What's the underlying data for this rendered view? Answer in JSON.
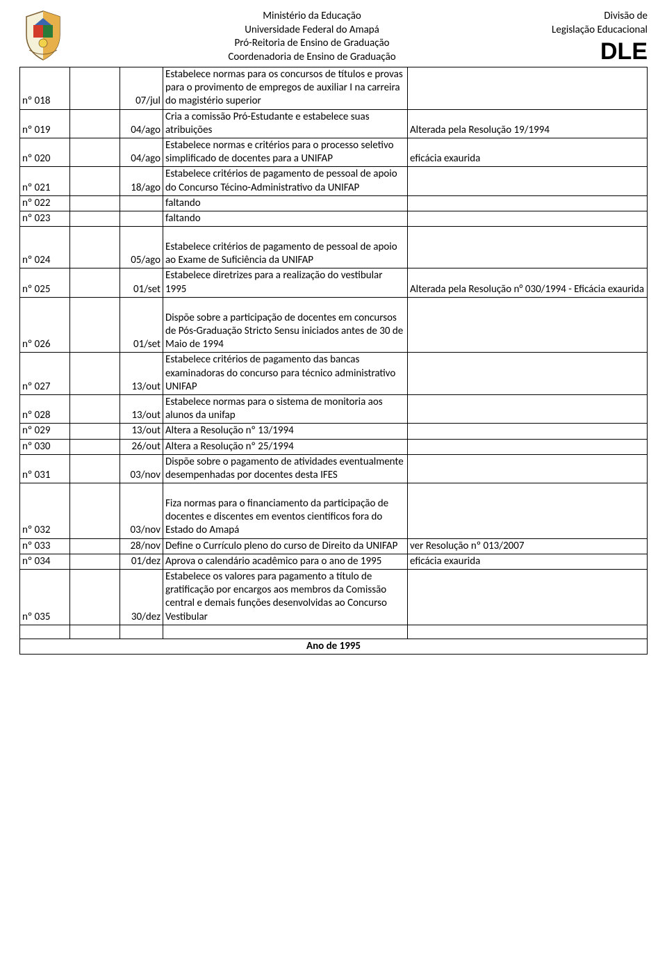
{
  "header": {
    "center": {
      "l1": "Ministério da Educação",
      "l2": "Universidade Federal do Amapá",
      "l3": "Pró-Reitoria de Ensino de Graduação",
      "l4": "Coordenadoria de Ensino de Graduação"
    },
    "right": {
      "l1": "Divisão de",
      "l2": "Legislação Educacional",
      "acronym": "DLE"
    }
  },
  "rows": [
    {
      "num": "nº 018",
      "date": "07/jul",
      "desc": "Estabelece normas para os concursos de títulos e provas para o provimento de empregos de auxiliar I na carreira do magistério superior",
      "note": ""
    },
    {
      "num": "nº 019",
      "date": "04/ago",
      "desc": "Cria a comissão Pró-Estudante e estabelece suas atribuições",
      "note": "Alterada pela Resolução 19/1994"
    },
    {
      "num": "nº 020",
      "date": "04/ago",
      "desc": "Estabelece normas e critérios para o processo seletivo simplificado de docentes para a UNIFAP",
      "note": "eficácia exaurida"
    },
    {
      "num": "nº 021",
      "date": "18/ago",
      "desc": "Estabelece critérios de pagamento de pessoal de apoio do Concurso Técino-Administrativo da UNIFAP",
      "note": ""
    },
    {
      "num": "nº 022",
      "date": "",
      "desc": "faltando",
      "note": ""
    },
    {
      "num": "nº 023",
      "date": "",
      "desc": "faltando",
      "note": ""
    },
    {
      "num": "nº 024",
      "date": "05/ago",
      "desc": "Estabelece critérios de pagamento de pessoal de apoio ao Exame de Suficiência da UNIFAP",
      "note": "",
      "pad": true
    },
    {
      "num": "nº 025",
      "date": "01/set",
      "desc": "Estabelece diretrizes para a realização do vestibular 1995",
      "note": "Alterada pela Resolução n° 030/1994 - Eficácia exaurida"
    },
    {
      "num": "nº 026",
      "date": "01/set",
      "desc": "Dispõe sobre a participação de docentes em concursos de Pós-Graduação Stricto Sensu iniciados antes de 30 de Maio de 1994",
      "note": "",
      "pad": true
    },
    {
      "num": "nº 027",
      "date": "13/out",
      "desc": "Estabelece critérios de pagamento das bancas examinadoras do concurso para técnico administrativo UNIFAP",
      "note": ""
    },
    {
      "num": "nº 028",
      "date": "13/out",
      "desc": "Estabelece normas para o sistema de monitoria aos alunos da unifap",
      "note": ""
    },
    {
      "num": "nº 029",
      "date": "13/out",
      "desc": "Altera a Resolução nº 13/1994",
      "note": ""
    },
    {
      "num": "nº 030",
      "date": "26/out",
      "desc": "Altera a Resolução nº 25/1994",
      "note": ""
    },
    {
      "num": "nº 031",
      "date": "03/nov",
      "desc": "Dispõe sobre o pagamento de atividades eventualmente desempenhadas por docentes desta IFES",
      "note": ""
    },
    {
      "num": "nº 032",
      "date": "03/nov",
      "desc": "Fiza normas para o financiamento da participação de docentes e discentes em eventos científicos fora do Estado do Amapá",
      "note": "",
      "pad": true
    },
    {
      "num": "nº 033",
      "date": "28/nov",
      "desc": "Define o Currículo pleno do curso de Direito da UNIFAP",
      "note": "ver Resolução nº 013/2007"
    },
    {
      "num": "nº 034",
      "date": "01/dez",
      "desc": "Aprova o calendário acadêmico para o ano de 1995",
      "note": "eficácia exaurida"
    },
    {
      "num": "nº 035",
      "date": "30/dez",
      "desc": "Estabelece os valores para pagamento a título de gratificação por encargos aos membros da Comissão central e demais funções desenvolvidas ao Concurso Vestibular",
      "note": ""
    }
  ],
  "footer": "Ano de 1995"
}
